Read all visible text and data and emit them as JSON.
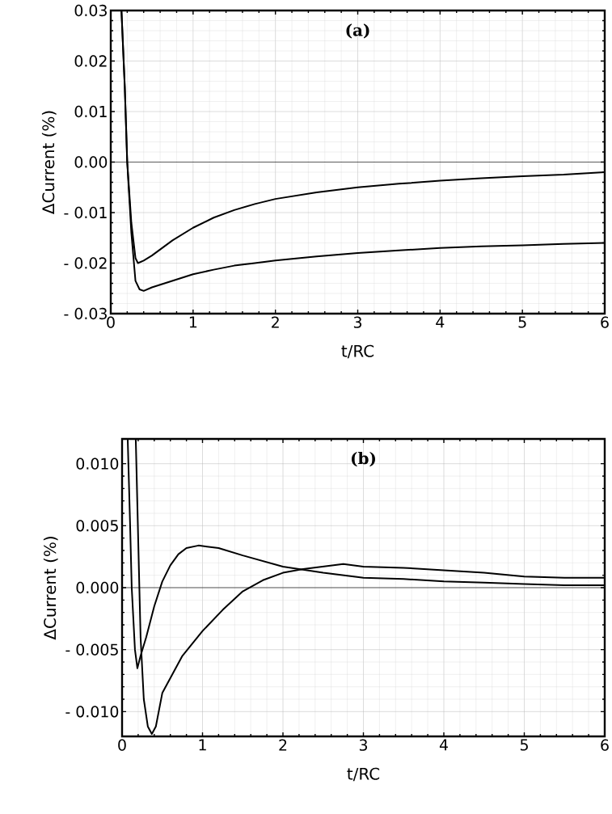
{
  "chart_data": [
    {
      "type": "line",
      "title": "(a)",
      "xlabel": "t/RC",
      "ylabel": "ΔCurrent (%)",
      "xlim": [
        0,
        6
      ],
      "ylim": [
        -0.03,
        0.03
      ],
      "xticks": [
        0,
        1,
        2,
        3,
        4,
        5,
        6
      ],
      "yticks": [
        {
          "value": -0.03,
          "label": "- 0.03"
        },
        {
          "value": -0.02,
          "label": "- 0.02"
        },
        {
          "value": -0.01,
          "label": "- 0.01"
        },
        {
          "value": 0,
          "label": "0.00"
        },
        {
          "value": 0.01,
          "label": "0.01"
        },
        {
          "value": 0.02,
          "label": "0.02"
        },
        {
          "value": 0.03,
          "label": "0.03"
        }
      ],
      "grid": true,
      "line_style": "solid",
      "ref_lines": [
        {
          "axis": "y",
          "value": 0,
          "color": "#000000"
        }
      ],
      "series": [
        {
          "color": "#000000",
          "x": [
            0.13,
            0.17,
            0.2,
            0.25,
            0.3,
            0.33,
            0.4,
            0.5,
            0.75,
            1.0,
            1.25,
            1.5,
            1.75,
            2.0,
            2.5,
            3.0,
            3.5,
            4.0,
            4.5,
            5.0,
            5.5,
            6.0
          ],
          "values": [
            0.03,
            0.015,
            0.0,
            -0.012,
            -0.019,
            -0.02,
            -0.0195,
            -0.0185,
            -0.0155,
            -0.013,
            -0.011,
            -0.0095,
            -0.0083,
            -0.0073,
            -0.006,
            -0.005,
            -0.0043,
            -0.0037,
            -0.0032,
            -0.0028,
            -0.0025,
            -0.002
          ]
        },
        {
          "color": "#000000",
          "x": [
            0.13,
            0.17,
            0.2,
            0.25,
            0.3,
            0.35,
            0.4,
            0.5,
            0.75,
            1.0,
            1.25,
            1.5,
            1.75,
            2.0,
            2.5,
            3.0,
            3.5,
            4.0,
            4.5,
            5.0,
            5.5,
            6.0
          ],
          "values": [
            0.03,
            0.015,
            0.0,
            -0.014,
            -0.0235,
            -0.0252,
            -0.0255,
            -0.0248,
            -0.0235,
            -0.0222,
            -0.0213,
            -0.0205,
            -0.02,
            -0.0195,
            -0.0187,
            -0.018,
            -0.0175,
            -0.017,
            -0.0167,
            -0.0165,
            -0.0162,
            -0.016
          ]
        }
      ]
    },
    {
      "type": "line",
      "title": "(b)",
      "xlabel": "t/RC",
      "ylabel": "ΔCurrent (%)",
      "xlim": [
        0,
        6
      ],
      "ylim": [
        -0.012,
        0.012
      ],
      "xticks": [
        0,
        1,
        2,
        3,
        4,
        5,
        6
      ],
      "yticks": [
        {
          "value": -0.01,
          "label": "- 0.010"
        },
        {
          "value": -0.005,
          "label": "- 0.005"
        },
        {
          "value": 0,
          "label": "0.000"
        },
        {
          "value": 0.005,
          "label": "0.005"
        },
        {
          "value": 0.01,
          "label": "0.010"
        }
      ],
      "grid": true,
      "line_style": "solid",
      "ref_lines": [
        {
          "axis": "y",
          "value": 0,
          "color": "#000000"
        }
      ],
      "series": [
        {
          "color": "#000000",
          "x": [
            0.07,
            0.1,
            0.12,
            0.16,
            0.19,
            0.23,
            0.3,
            0.4,
            0.5,
            0.6,
            0.7,
            0.8,
            0.95,
            1.2,
            1.5,
            2.0,
            2.5,
            3.0,
            3.5,
            4.0,
            4.5,
            5.0,
            5.5,
            6.0
          ],
          "values": [
            0.012,
            0.005,
            0.0,
            -0.005,
            -0.0065,
            -0.0055,
            -0.004,
            -0.0015,
            0.0005,
            0.0018,
            0.0027,
            0.0032,
            0.0034,
            0.0032,
            0.0026,
            0.0017,
            0.0012,
            0.0008,
            0.0007,
            0.0005,
            0.0004,
            0.0003,
            0.0002,
            0.0002
          ]
        },
        {
          "color": "#000000",
          "x": [
            0.17,
            0.2,
            0.23,
            0.27,
            0.32,
            0.37,
            0.42,
            0.5,
            0.75,
            1.0,
            1.25,
            1.5,
            1.75,
            2.0,
            2.25,
            2.5,
            2.75,
            3.0,
            3.5,
            4.0,
            4.5,
            5.0,
            5.5,
            6.0
          ],
          "values": [
            0.012,
            0.004,
            -0.004,
            -0.009,
            -0.0112,
            -0.0118,
            -0.0112,
            -0.0085,
            -0.0055,
            -0.0035,
            -0.0018,
            -0.0003,
            0.0006,
            0.0012,
            0.0015,
            0.0017,
            0.0019,
            0.0017,
            0.0016,
            0.0014,
            0.0012,
            0.0009,
            0.0008,
            0.0008
          ]
        }
      ]
    }
  ]
}
